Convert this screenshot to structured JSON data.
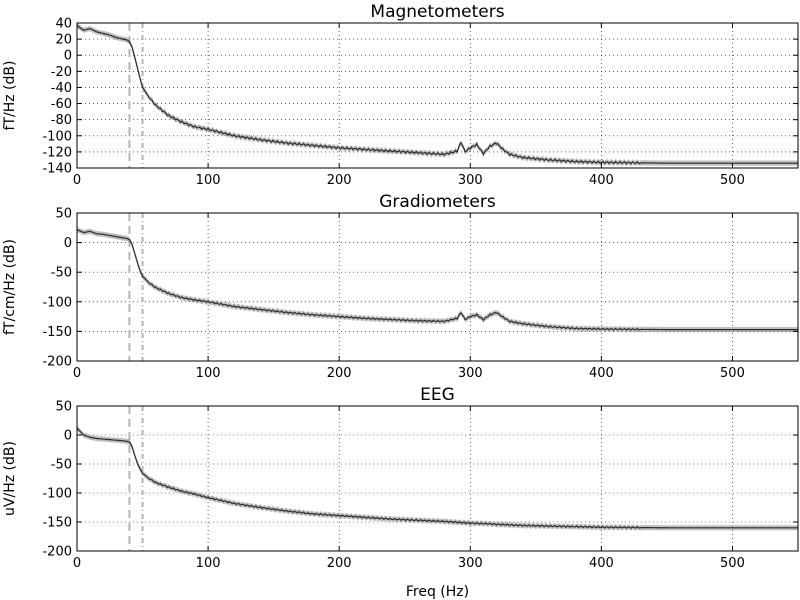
{
  "chart_data": [
    {
      "type": "line",
      "title": "Magnetometers",
      "xlabel": "",
      "ylabel": "fT/Hz (dB)",
      "xlim": [
        0,
        550
      ],
      "ylim": [
        -140,
        40
      ],
      "xticks": [
        0,
        100,
        200,
        300,
        400,
        500
      ],
      "yticks": [
        40,
        20,
        0,
        -20,
        -40,
        -60,
        -80,
        -100,
        -120,
        -140
      ],
      "grid": true,
      "vlines": [
        40,
        50
      ],
      "series": [
        {
          "x": [
            0,
            5,
            10,
            15,
            20,
            25,
            30,
            35,
            38,
            40,
            42,
            44,
            46,
            48,
            50,
            55,
            60,
            70,
            80,
            90,
            100,
            110,
            120,
            140,
            160,
            180,
            200,
            220,
            240,
            260,
            280,
            290,
            293,
            296,
            300,
            305,
            310,
            315,
            320,
            325,
            330,
            340,
            360,
            380,
            400,
            450,
            500,
            550
          ],
          "y": [
            37,
            31,
            33,
            29,
            27,
            25,
            22,
            20,
            19,
            17,
            10,
            -2,
            -15,
            -28,
            -40,
            -52,
            -62,
            -75,
            -83,
            -89,
            -92,
            -96,
            -100,
            -105,
            -109,
            -112,
            -115,
            -117,
            -119,
            -121,
            -123,
            -119,
            -108,
            -120,
            -115,
            -111,
            -122,
            -113,
            -109,
            -117,
            -123,
            -127,
            -130,
            -132,
            -133,
            -134,
            -134,
            -134
          ]
        }
      ]
    },
    {
      "type": "line",
      "title": "Gradiometers",
      "xlabel": "",
      "ylabel": "fT/cm/Hz (dB)",
      "xlim": [
        0,
        550
      ],
      "ylim": [
        -200,
        50
      ],
      "xticks": [
        0,
        100,
        200,
        300,
        400,
        500
      ],
      "yticks": [
        50,
        0,
        -50,
        -100,
        -150,
        -200
      ],
      "grid": true,
      "vlines": [
        40,
        50
      ],
      "series": [
        {
          "x": [
            0,
            5,
            10,
            15,
            20,
            25,
            30,
            35,
            38,
            40,
            42,
            44,
            46,
            48,
            50,
            55,
            60,
            70,
            80,
            90,
            100,
            110,
            120,
            140,
            160,
            180,
            200,
            220,
            240,
            260,
            280,
            290,
            293,
            296,
            300,
            305,
            310,
            315,
            320,
            325,
            330,
            340,
            360,
            380,
            400,
            450,
            500,
            550
          ],
          "y": [
            22,
            17,
            19,
            15,
            14,
            12,
            10,
            8,
            7,
            5,
            -3,
            -18,
            -33,
            -47,
            -57,
            -68,
            -76,
            -86,
            -93,
            -97,
            -100,
            -104,
            -108,
            -113,
            -118,
            -122,
            -125,
            -128,
            -130,
            -132,
            -133,
            -128,
            -118,
            -130,
            -125,
            -122,
            -130,
            -122,
            -118,
            -126,
            -133,
            -137,
            -142,
            -145,
            -146,
            -147,
            -147,
            -147
          ]
        }
      ]
    },
    {
      "type": "line",
      "title": "EEG",
      "xlabel": "Freq (Hz)",
      "ylabel": "uV/Hz (dB)",
      "xlim": [
        0,
        550
      ],
      "ylim": [
        -200,
        50
      ],
      "xticks": [
        0,
        100,
        200,
        300,
        400,
        500
      ],
      "yticks": [
        50,
        0,
        -50,
        -100,
        -150,
        -200
      ],
      "grid": true,
      "vlines": [
        40,
        50
      ],
      "series": [
        {
          "x": [
            0,
            5,
            10,
            15,
            20,
            25,
            30,
            35,
            38,
            40,
            42,
            44,
            46,
            48,
            50,
            55,
            60,
            70,
            80,
            90,
            100,
            110,
            120,
            140,
            150,
            160,
            180,
            200,
            220,
            240,
            260,
            280,
            293,
            300,
            313,
            320,
            340,
            360,
            380,
            400,
            450,
            500,
            550
          ],
          "y": [
            12,
            0,
            -4,
            -6,
            -7,
            -8,
            -9,
            -10,
            -11,
            -12,
            -20,
            -35,
            -48,
            -58,
            -66,
            -75,
            -82,
            -90,
            -97,
            -102,
            -108,
            -113,
            -118,
            -125,
            -128,
            -131,
            -136,
            -139,
            -142,
            -145,
            -147,
            -149,
            -151,
            -152,
            -153,
            -154,
            -156,
            -157,
            -158,
            -159,
            -160,
            -160,
            -160
          ]
        }
      ]
    }
  ]
}
